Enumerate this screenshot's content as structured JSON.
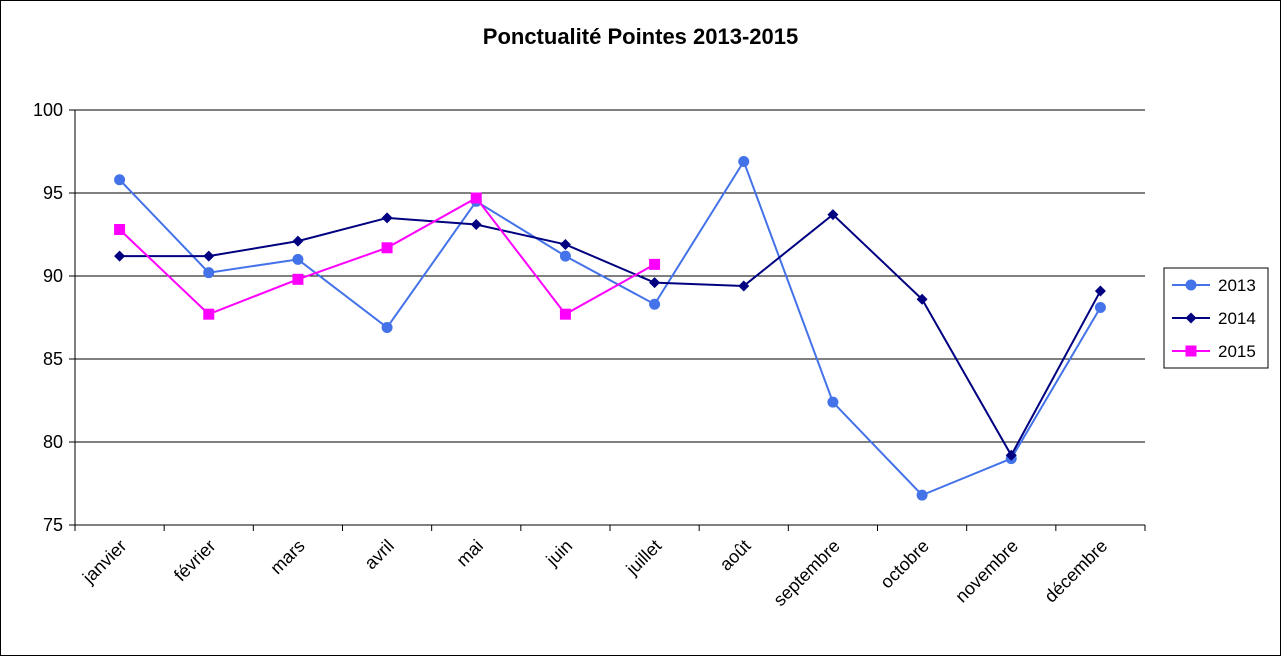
{
  "chart_data": {
    "type": "line",
    "title": "Ponctualité Pointes 2013-2015",
    "xlabel": "",
    "ylabel": "",
    "ylim": [
      75,
      100
    ],
    "yticks": [
      75,
      80,
      85,
      90,
      95,
      100
    ],
    "grid": true,
    "legend_position": "right",
    "categories": [
      "janvier",
      "février",
      "mars",
      "avril",
      "mai",
      "juin",
      "juillet",
      "août",
      "septembre",
      "octobre",
      "novembre",
      "décembre"
    ],
    "series": [
      {
        "name": "2013",
        "color": "#4472e8",
        "marker": "circle",
        "values": [
          95.8,
          90.2,
          91.0,
          86.9,
          94.5,
          91.2,
          88.3,
          96.9,
          82.4,
          76.8,
          79.0,
          88.1
        ]
      },
      {
        "name": "2014",
        "color": "#000080",
        "marker": "diamond",
        "values": [
          91.2,
          91.2,
          92.1,
          93.5,
          93.1,
          91.9,
          89.6,
          89.4,
          93.7,
          88.6,
          79.2,
          89.1
        ]
      },
      {
        "name": "2015",
        "color": "#ff00ff",
        "marker": "square",
        "values": [
          92.8,
          87.7,
          89.8,
          91.7,
          94.7,
          87.7,
          90.7,
          null,
          null,
          null,
          null,
          null
        ]
      }
    ]
  }
}
